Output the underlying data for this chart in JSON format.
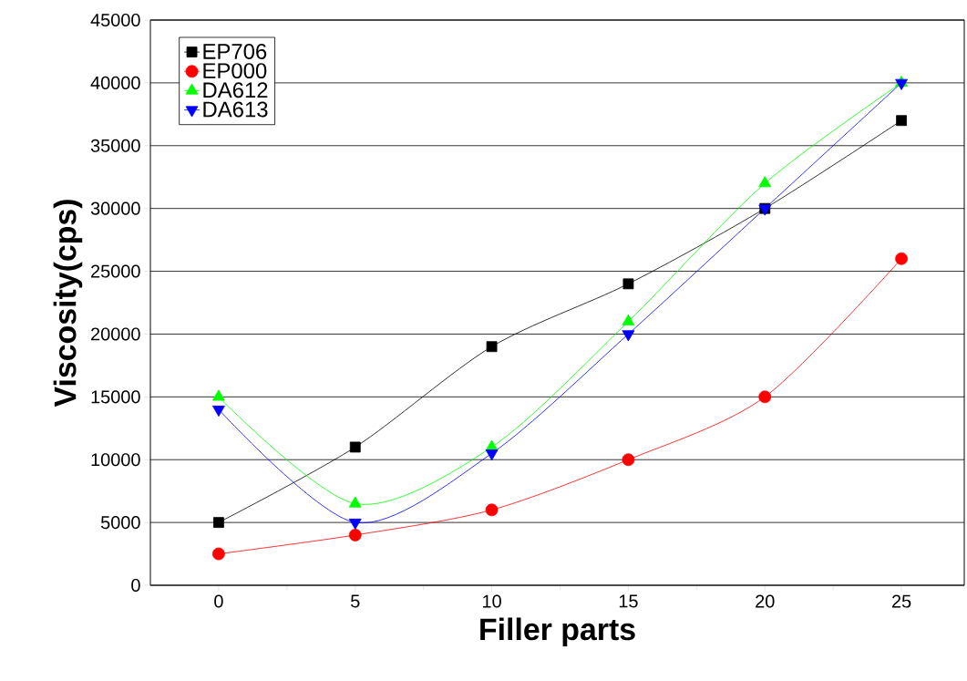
{
  "chart_data": {
    "type": "line",
    "xlabel": "Filler parts",
    "ylabel": "Viscosity(cps)",
    "x": [
      0,
      5,
      10,
      15,
      20,
      25
    ],
    "series": [
      {
        "name": "EP706",
        "color": "#000000",
        "marker": "square",
        "values": [
          5000,
          11000,
          19000,
          24000,
          30000,
          37000
        ]
      },
      {
        "name": "EP000",
        "color": "#ff0000",
        "marker": "circle",
        "values": [
          2500,
          4000,
          6000,
          10000,
          15000,
          26000
        ]
      },
      {
        "name": "DA612",
        "color": "#00ff00",
        "marker": "triangle",
        "values": [
          15000,
          6500,
          11000,
          21000,
          32000,
          40000
        ]
      },
      {
        "name": "DA613",
        "color": "#0000ff",
        "marker": "triangle-down",
        "values": [
          14000,
          5000,
          10500,
          20000,
          30000,
          40000
        ]
      }
    ],
    "xlim": [
      -2.5,
      27.3
    ],
    "ylim": [
      0,
      45000
    ],
    "xticks": [
      0,
      5,
      10,
      15,
      20,
      25
    ],
    "yticks": [
      0,
      5000,
      10000,
      15000,
      20000,
      25000,
      30000,
      35000,
      40000,
      45000
    ],
    "grid": "y",
    "legend": "top left",
    "line_style": "solid"
  }
}
